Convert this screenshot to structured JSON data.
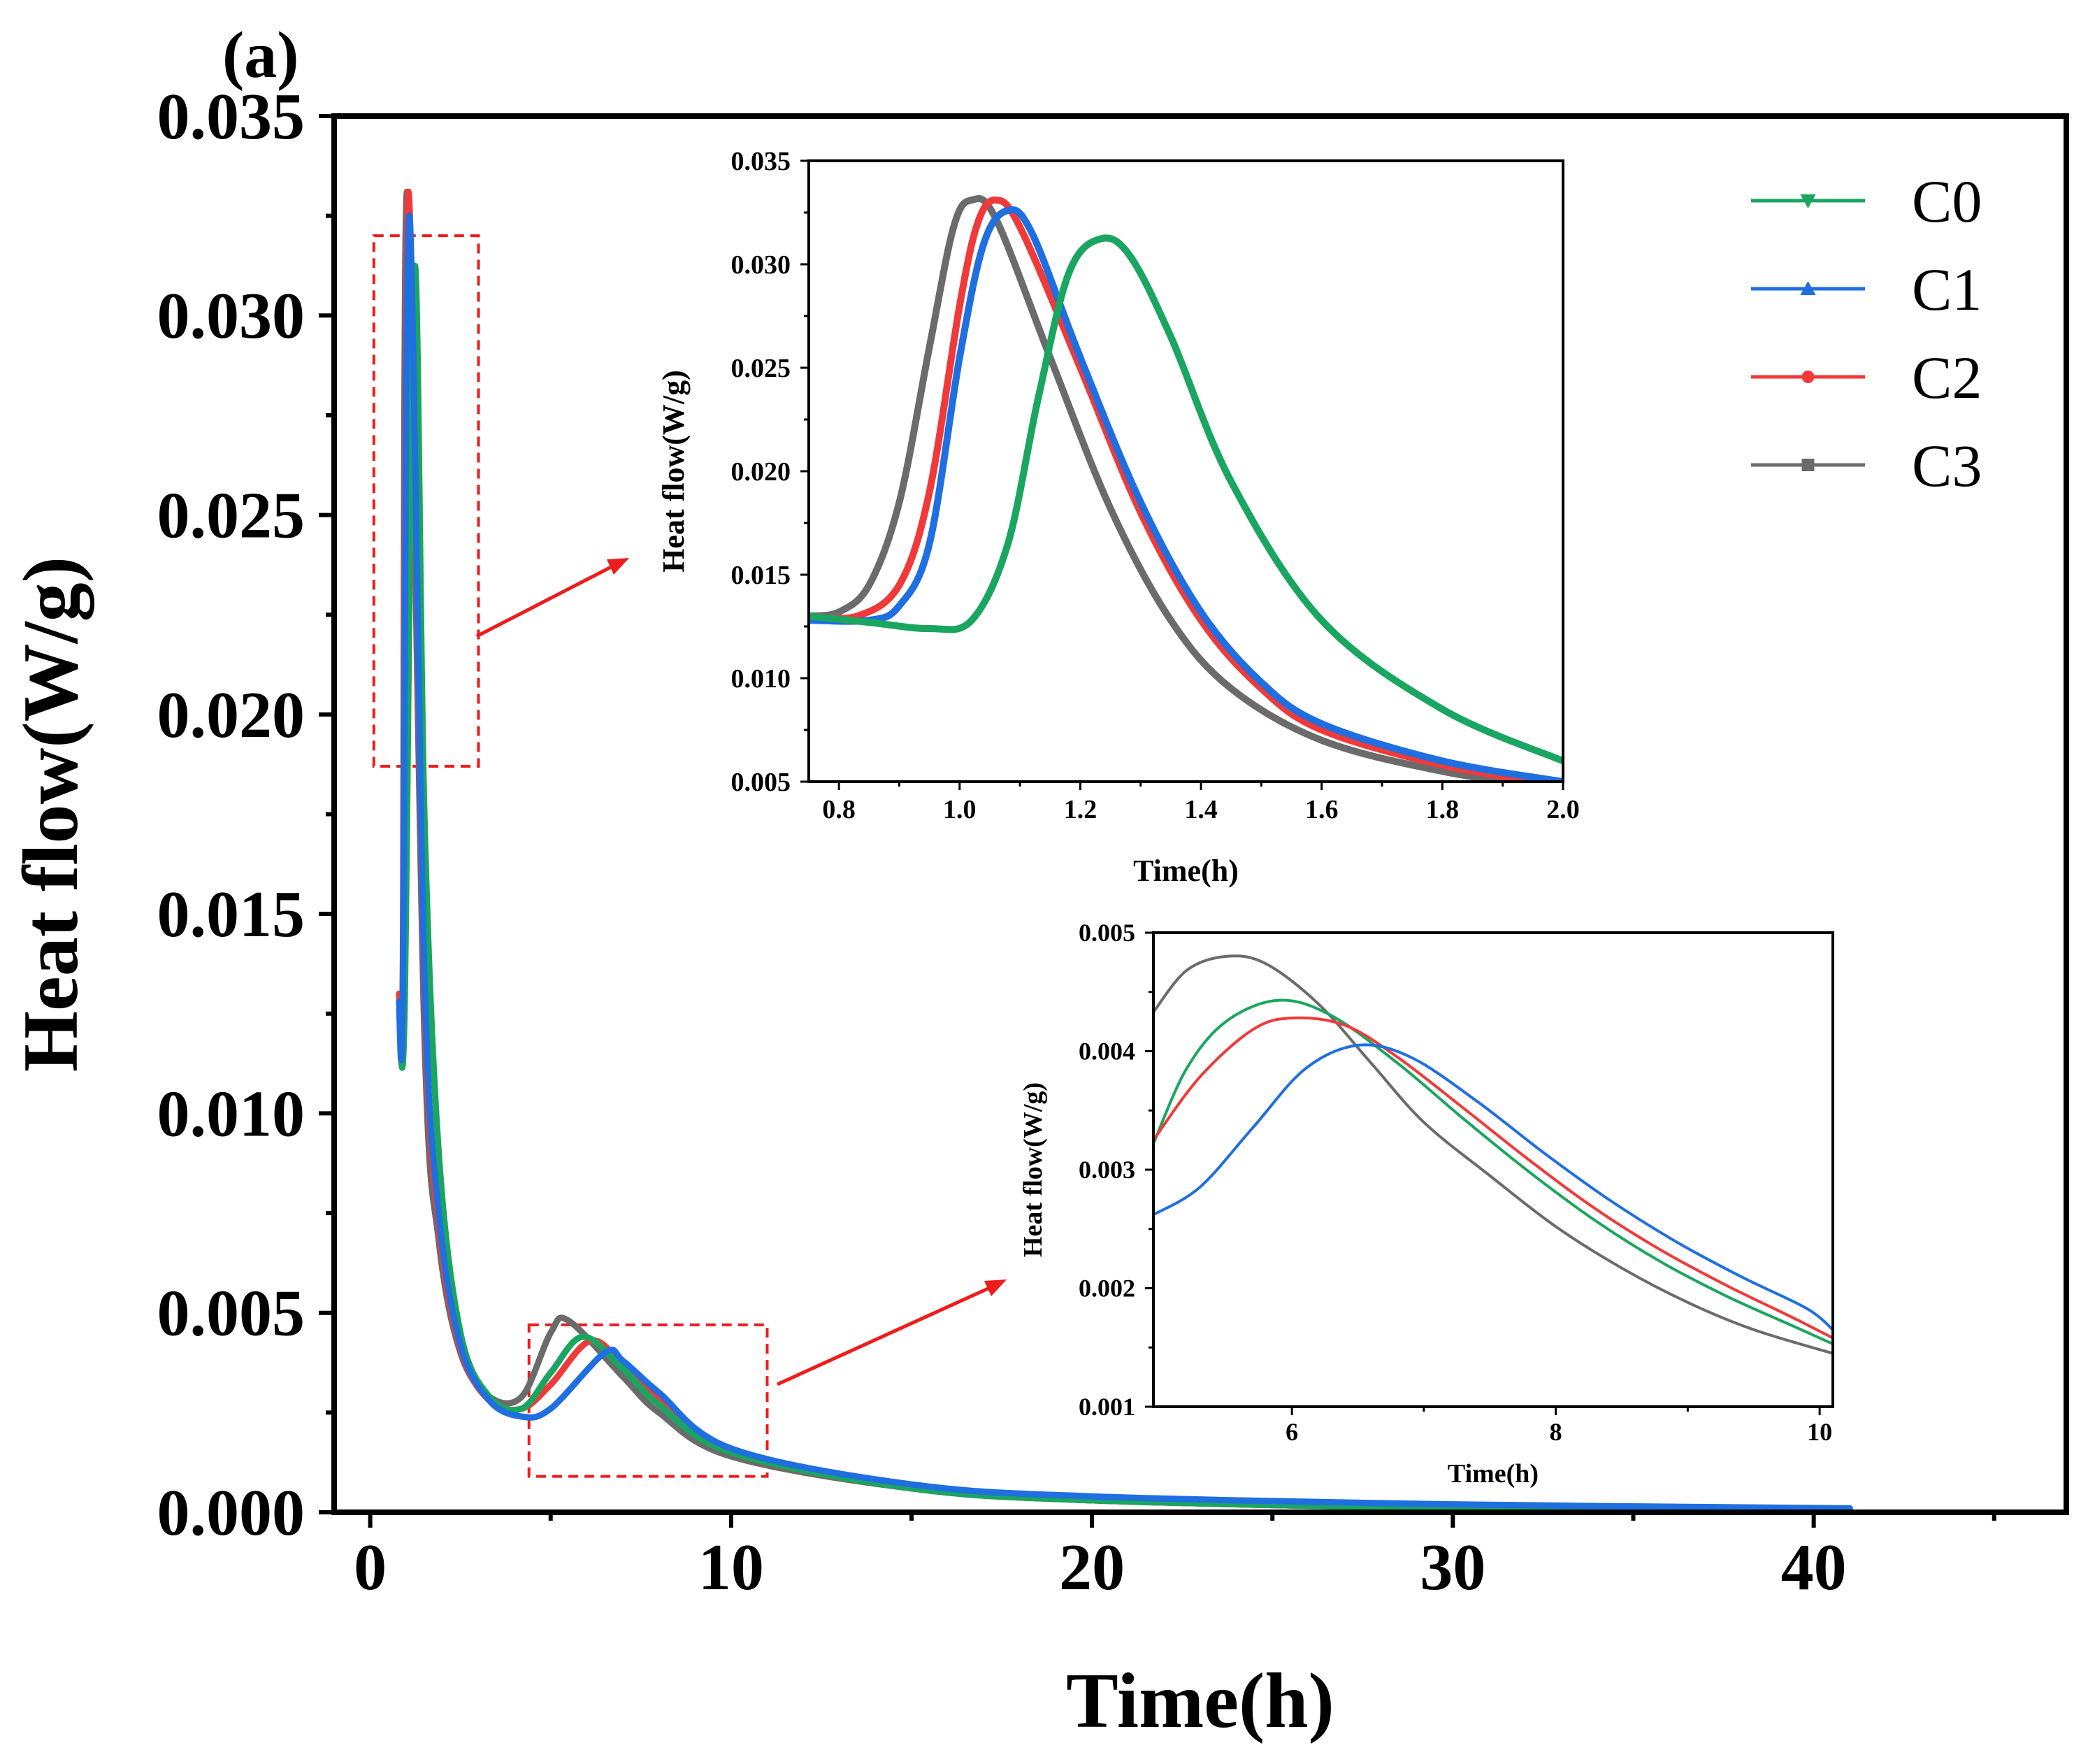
{
  "panel_label": "(a)",
  "colors": {
    "C0": "#1aa660",
    "C1": "#1f6fe0",
    "C2": "#f03a3a",
    "C3": "#6b6b6b",
    "highlight": "#ee1c1c"
  },
  "chart_data": [
    {
      "id": "main",
      "type": "line",
      "title": "",
      "xlabel": "Time(h)",
      "ylabel": "Heat flow(W/g)",
      "xlim": [
        -1,
        47
      ],
      "ylim": [
        0,
        0.035
      ],
      "xticks": [
        0,
        10,
        20,
        30,
        40
      ],
      "xtick_labels": [
        "0",
        "10",
        "20",
        "30",
        "40"
      ],
      "yticks": [
        0,
        0.005,
        0.01,
        0.015,
        0.02,
        0.025,
        0.03,
        0.035
      ],
      "ytick_labels": [
        "0.000",
        "0.005",
        "0.010",
        "0.015",
        "0.020",
        "0.025",
        "0.030",
        "0.035"
      ],
      "legend": {
        "position": "top-right",
        "entries": [
          "C0",
          "C1",
          "C2",
          "C3"
        ]
      },
      "series": [
        {
          "name": "C0",
          "marker": "triangle-down",
          "x": [
            0.8,
            0.95,
            1.23,
            1.5,
            1.9,
            2.5,
            3.3,
            4.2,
            5.0,
            5.9,
            7.0,
            8.0,
            10.0,
            15.0,
            20.0,
            30.0,
            41.0
          ],
          "values": [
            0.0126,
            0.0125,
            0.0312,
            0.0175,
            0.009,
            0.0045,
            0.0029,
            0.0026,
            0.0035,
            0.0044,
            0.0036,
            0.0027,
            0.0015,
            0.0006,
            0.0003,
            0.0001,
            0.0
          ]
        },
        {
          "name": "C1",
          "marker": "triangle-up",
          "x": [
            0.8,
            0.9,
            1.08,
            1.5,
            1.9,
            2.5,
            3.3,
            4.2,
            5.0,
            6.5,
            7.0,
            8.0,
            10.0,
            15.0,
            20.0,
            30.0,
            41.0
          ],
          "values": [
            0.0128,
            0.0128,
            0.0325,
            0.0135,
            0.0075,
            0.0042,
            0.0028,
            0.0024,
            0.0026,
            0.004,
            0.0038,
            0.003,
            0.0016,
            0.0007,
            0.0004,
            0.0002,
            0.0001
          ]
        },
        {
          "name": "C2",
          "marker": "circle",
          "x": [
            0.8,
            0.9,
            1.06,
            1.5,
            1.9,
            2.5,
            3.3,
            4.2,
            5.0,
            6.1,
            7.0,
            8.0,
            10.0,
            15.0,
            20.0,
            30.0,
            41.0
          ],
          "values": [
            0.013,
            0.013,
            0.0331,
            0.013,
            0.0072,
            0.0041,
            0.0028,
            0.0026,
            0.0032,
            0.0043,
            0.0037,
            0.0028,
            0.0015,
            0.0006,
            0.0003,
            0.0001,
            0.0
          ]
        },
        {
          "name": "C3",
          "marker": "square",
          "x": [
            0.8,
            0.9,
            1.02,
            1.5,
            1.9,
            2.5,
            3.3,
            4.2,
            5.0,
            5.5,
            7.0,
            8.0,
            10.0,
            15.0,
            20.0,
            30.0,
            41.0
          ],
          "values": [
            0.013,
            0.0132,
            0.0331,
            0.012,
            0.0068,
            0.004,
            0.0029,
            0.0029,
            0.0045,
            0.0048,
            0.0034,
            0.0025,
            0.0014,
            0.0006,
            0.0003,
            0.0001,
            0.0
          ]
        }
      ],
      "highlight_boxes": [
        {
          "name": "peak-region",
          "x_range": [
            0.1,
            3.0
          ],
          "y_range": [
            0.0187,
            0.032
          ]
        },
        {
          "name": "second-peak-region",
          "x_range": [
            4.4,
            11.0
          ],
          "y_range": [
            0.0009,
            0.0047
          ]
        }
      ]
    },
    {
      "id": "inset-top",
      "type": "line",
      "xlabel": "Time(h)",
      "ylabel": "Heat flow(W/g)",
      "xlim": [
        0.75,
        2.0
      ],
      "ylim": [
        0.005,
        0.035
      ],
      "xticks": [
        0.8,
        1.0,
        1.2,
        1.4,
        1.6,
        1.8,
        2.0
      ],
      "xtick_labels": [
        "0.8",
        "1.0",
        "1.2",
        "1.4",
        "1.6",
        "1.8",
        "2.0"
      ],
      "yticks": [
        0.005,
        0.01,
        0.015,
        0.02,
        0.025,
        0.03,
        0.035
      ],
      "ytick_labels": [
        "0.005",
        "0.010",
        "0.015",
        "0.020",
        "0.025",
        "0.030",
        "0.035"
      ],
      "series": [
        {
          "name": "C0",
          "x": [
            0.75,
            0.85,
            0.95,
            1.02,
            1.08,
            1.13,
            1.18,
            1.23,
            1.28,
            1.35,
            1.45,
            1.6,
            1.8,
            2.0
          ],
          "values": [
            0.013,
            0.0127,
            0.0124,
            0.0128,
            0.0165,
            0.0235,
            0.0295,
            0.0312,
            0.0305,
            0.0265,
            0.0195,
            0.0128,
            0.0085,
            0.006
          ]
        },
        {
          "name": "C1",
          "x": [
            0.75,
            0.85,
            0.9,
            0.95,
            1.0,
            1.04,
            1.08,
            1.12,
            1.2,
            1.3,
            1.4,
            1.5,
            1.6,
            1.8,
            2.0
          ],
          "values": [
            0.0128,
            0.0128,
            0.0135,
            0.0165,
            0.0255,
            0.031,
            0.0326,
            0.0315,
            0.0255,
            0.0185,
            0.0132,
            0.0098,
            0.0078,
            0.006,
            0.005
          ]
        },
        {
          "name": "C2",
          "x": [
            0.75,
            0.83,
            0.9,
            0.95,
            1.0,
            1.03,
            1.06,
            1.1,
            1.2,
            1.3,
            1.4,
            1.5,
            1.6,
            1.8,
            2.0
          ],
          "values": [
            0.013,
            0.013,
            0.0145,
            0.019,
            0.028,
            0.032,
            0.0331,
            0.0318,
            0.025,
            0.018,
            0.0128,
            0.0095,
            0.0075,
            0.0058,
            0.0048
          ]
        },
        {
          "name": "C3",
          "x": [
            0.75,
            0.8,
            0.85,
            0.9,
            0.95,
            0.99,
            1.02,
            1.06,
            1.15,
            1.25,
            1.35,
            1.45,
            1.6,
            1.8,
            2.0
          ],
          "values": [
            0.013,
            0.0132,
            0.0145,
            0.0185,
            0.026,
            0.0318,
            0.0331,
            0.0322,
            0.0255,
            0.0182,
            0.0128,
            0.0095,
            0.007,
            0.0055,
            0.0046
          ]
        }
      ]
    },
    {
      "id": "inset-bottom",
      "type": "line",
      "xlabel": "Time(h)",
      "ylabel": "Heat flow(W/g)",
      "xlim": [
        4.95,
        10.1
      ],
      "ylim": [
        0.001,
        0.005
      ],
      "xticks": [
        6,
        8,
        10
      ],
      "xtick_labels": [
        "6",
        "8",
        "10"
      ],
      "yticks": [
        0.001,
        0.002,
        0.003,
        0.004,
        0.005
      ],
      "ytick_labels": [
        "0.001",
        "0.002",
        "0.003",
        "0.004",
        "0.005"
      ],
      "series": [
        {
          "name": "C0",
          "x": [
            4.95,
            5.2,
            5.5,
            5.9,
            6.3,
            6.8,
            7.3,
            7.8,
            8.3,
            8.8,
            9.3,
            9.8,
            10.1
          ],
          "values": [
            0.00322,
            0.00385,
            0.00425,
            0.00443,
            0.0043,
            0.0039,
            0.00343,
            0.00298,
            0.00257,
            0.00222,
            0.00193,
            0.00168,
            0.00153
          ]
        },
        {
          "name": "C1",
          "x": [
            4.95,
            5.3,
            5.7,
            6.1,
            6.5,
            6.9,
            7.4,
            7.9,
            8.4,
            8.9,
            9.4,
            9.9,
            10.1
          ],
          "values": [
            0.00262,
            0.00285,
            0.00335,
            0.00385,
            0.00405,
            0.00395,
            0.00358,
            0.00315,
            0.00275,
            0.0024,
            0.0021,
            0.00183,
            0.00165
          ]
        },
        {
          "name": "C2",
          "x": [
            4.95,
            5.3,
            5.7,
            6.0,
            6.4,
            6.8,
            7.3,
            7.8,
            8.3,
            8.8,
            9.3,
            9.8,
            10.1
          ],
          "values": [
            0.00325,
            0.00378,
            0.00418,
            0.00428,
            0.00422,
            0.00395,
            0.00352,
            0.00308,
            0.00267,
            0.00232,
            0.00202,
            0.00175,
            0.00158
          ]
        },
        {
          "name": "C3",
          "x": [
            4.95,
            5.2,
            5.5,
            5.8,
            6.2,
            6.6,
            7.0,
            7.5,
            8.0,
            8.5,
            9.0,
            9.5,
            10.1
          ],
          "values": [
            0.00433,
            0.00468,
            0.0048,
            0.00474,
            0.0044,
            0.0039,
            0.0034,
            0.00295,
            0.00252,
            0.00217,
            0.00188,
            0.00165,
            0.00145
          ]
        }
      ]
    }
  ]
}
